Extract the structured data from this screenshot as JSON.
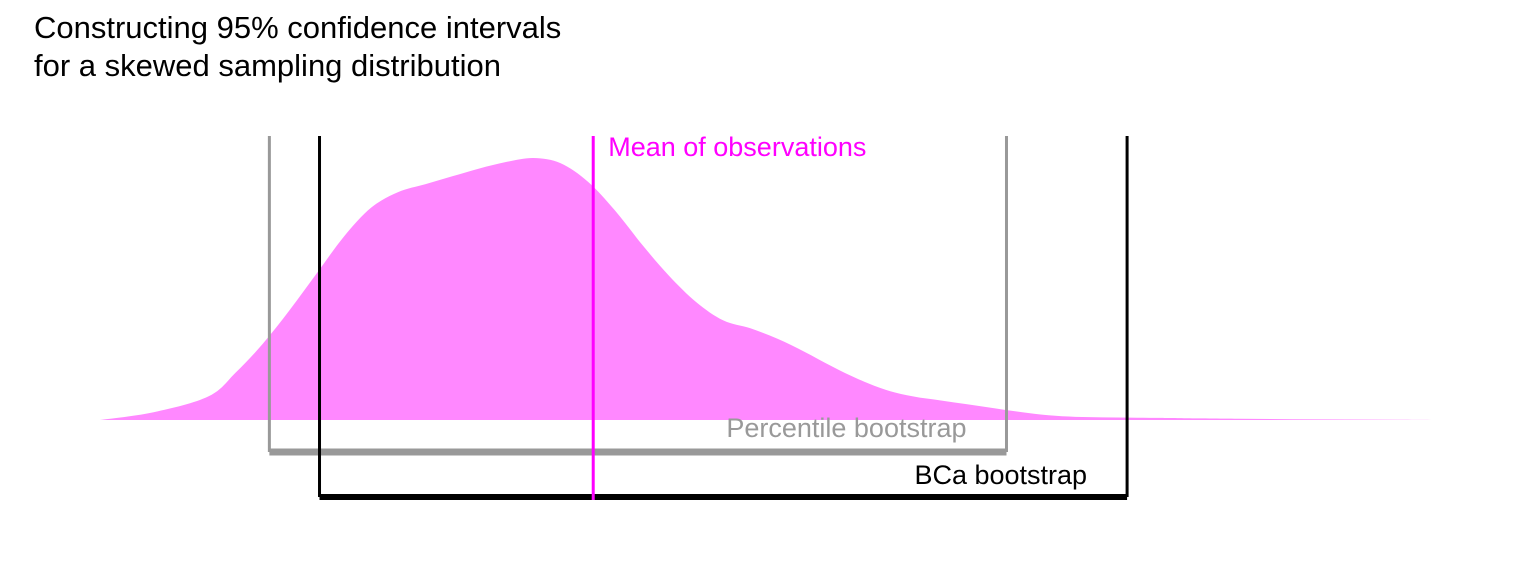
{
  "title_lines": [
    "Constructing 95% confidence intervals",
    "for a skewed sampling distribution"
  ],
  "colors": {
    "density_fill": "#ff88ff",
    "mean": "#ff00ff",
    "percentile": "#999999",
    "bca": "#000000"
  },
  "chart_data": {
    "type": "area",
    "title": "Constructing 95% confidence intervals for a skewed sampling distribution",
    "xlabel": "",
    "ylabel": "",
    "xlim": [
      0,
      100
    ],
    "ylim": [
      0,
      1
    ],
    "axes_visible": false,
    "grid": false,
    "density": {
      "x": [
        0,
        4,
        8,
        10,
        12,
        14,
        16,
        18,
        20,
        22,
        24,
        26,
        28,
        30,
        32,
        34,
        36,
        38,
        40,
        42,
        44,
        46,
        48,
        50,
        52,
        54,
        56,
        58,
        60,
        62,
        64,
        66,
        68,
        70,
        72,
        74,
        76,
        78,
        80,
        84,
        88,
        92,
        96,
        100
      ],
      "y": [
        0.0,
        0.03,
        0.09,
        0.18,
        0.29,
        0.42,
        0.56,
        0.7,
        0.81,
        0.87,
        0.9,
        0.93,
        0.96,
        0.985,
        1.0,
        0.98,
        0.91,
        0.8,
        0.67,
        0.55,
        0.45,
        0.38,
        0.35,
        0.31,
        0.26,
        0.205,
        0.155,
        0.115,
        0.09,
        0.075,
        0.06,
        0.045,
        0.03,
        0.018,
        0.012,
        0.01,
        0.009,
        0.008,
        0.007,
        0.005,
        0.003,
        0.002,
        0.001,
        0.0
      ]
    },
    "mean": {
      "x": 36.4,
      "label": "Mean of observations"
    },
    "intervals": [
      {
        "name": "Percentile bootstrap",
        "lower": 12.5,
        "upper": 66.9
      },
      {
        "name": "BCa bootstrap",
        "lower": 16.2,
        "upper": 75.8
      }
    ]
  }
}
